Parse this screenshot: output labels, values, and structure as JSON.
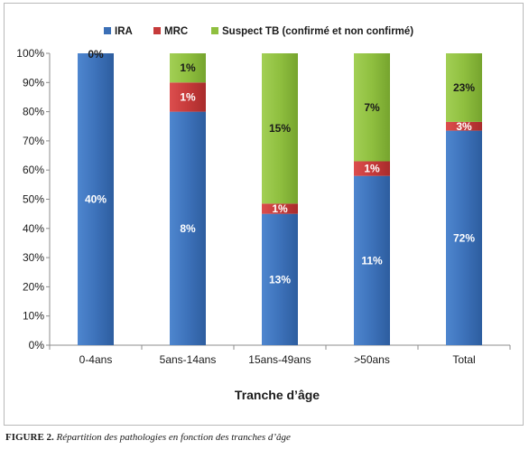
{
  "chart_data": {
    "type": "bar",
    "stacked": true,
    "normalized": true,
    "categories": [
      "0-4ans",
      "5ans-14ans",
      "15ans-49ans",
      ">50ans",
      "Total"
    ],
    "series": [
      {
        "name": "IRA",
        "color": "#3b6fb6",
        "values": [
          100,
          80,
          45,
          58,
          73.5
        ],
        "labels": [
          "40%",
          "8%",
          "13%",
          "11%",
          "72%"
        ]
      },
      {
        "name": "MRC",
        "color": "#c63a3a",
        "values": [
          0,
          10,
          3.5,
          5,
          3
        ],
        "labels": [
          "",
          "1%",
          "1%",
          "1%",
          "3%"
        ]
      },
      {
        "name": "Suspect TB (confirmé et non confirmé)",
        "color": "#8fbf3f",
        "values": [
          0,
          10,
          51.5,
          37,
          23.5
        ],
        "labels": [
          "0%",
          "1%",
          "15%",
          "7%",
          "23%"
        ]
      }
    ],
    "xlabel": "Tranche d’âge",
    "ylabel": "",
    "ylim": [
      0,
      100
    ],
    "yticks": [
      "0%",
      "10%",
      "20%",
      "30%",
      "40%",
      "50%",
      "60%",
      "70%",
      "80%",
      "90%",
      "100%"
    ],
    "grid": false,
    "legend": "top"
  },
  "caption": {
    "lead": "FIGURE 2.",
    "text": "Répartition des pathologies en fonction des tranches d’âge"
  }
}
